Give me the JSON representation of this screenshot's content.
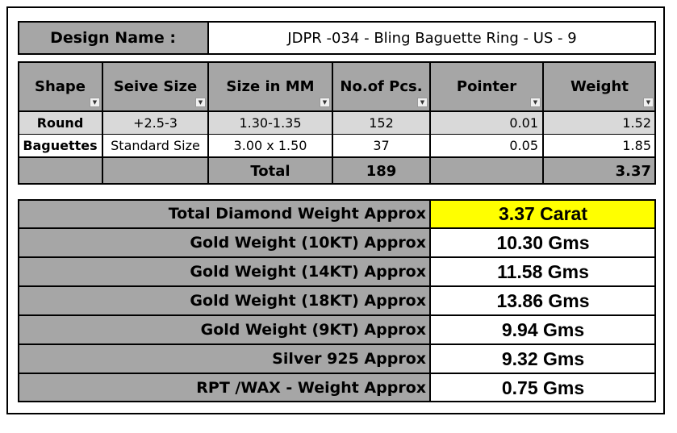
{
  "header": {
    "label": "Design Name :",
    "value": "JDPR -034 - Bling Baguette Ring - US - 9"
  },
  "table": {
    "columns": [
      "Shape",
      "Seive Size",
      "Size in MM",
      "No.of Pcs.",
      "Pointer",
      "Weight"
    ],
    "rows": [
      [
        "Round",
        "+2.5-3",
        "1.30-1.35",
        152,
        0.01,
        1.52
      ],
      [
        "Baguettes",
        "Standard Size",
        "3.00 x 1.50",
        37,
        0.05,
        1.85
      ]
    ],
    "total": {
      "label": "Total",
      "pcs": 189,
      "weight": 3.37
    }
  },
  "summary": [
    {
      "label": "Total Diamond Weight Approx",
      "value": "3.37 Carat"
    },
    {
      "label": "Gold Weight (10KT) Approx",
      "value": "10.30 Gms"
    },
    {
      "label": "Gold Weight (14KT) Approx",
      "value": "11.58 Gms"
    },
    {
      "label": "Gold Weight (18KT) Approx",
      "value": "13.86 Gms"
    },
    {
      "label": "Gold Weight (9KT) Approx",
      "value": "9.94 Gms"
    },
    {
      "label": "Silver 925 Approx",
      "value": "9.32 Gms"
    },
    {
      "label": "RPT /WAX - Weight Approx",
      "value": "0.75 Gms"
    }
  ]
}
